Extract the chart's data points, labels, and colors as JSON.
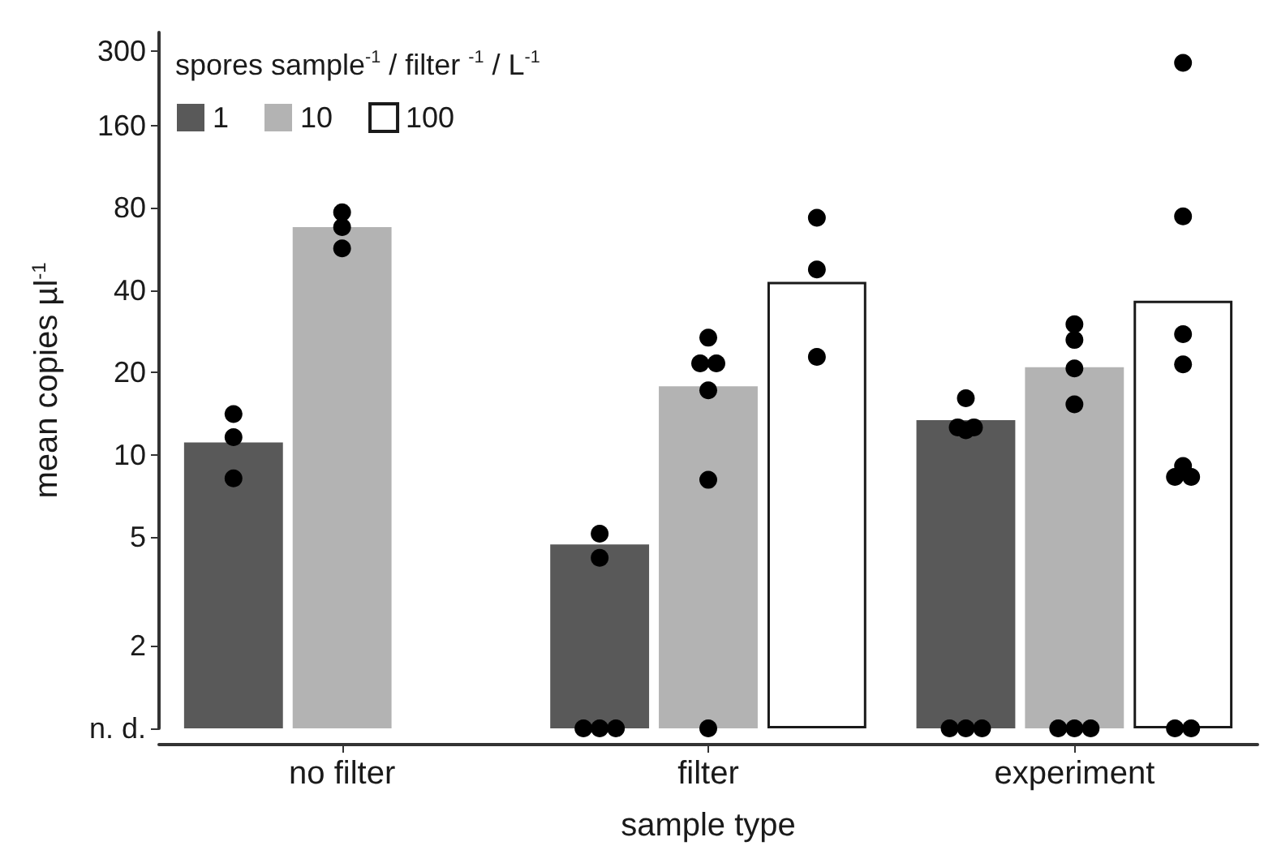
{
  "chart_data": {
    "type": "bar",
    "xlabel": "sample type",
    "ylabel": "mean copies µl$^{-1}$",
    "legend_title": "spores sample$^{-1}$ / filter $^{-1}$ / L$^{-1}$",
    "legend": "top left",
    "log": "y",
    "grid": false,
    "categories": [
      "no filter",
      "filter",
      "experiment"
    ],
    "ylim": [
      1,
      350
    ],
    "yticks": [
      {
        "value": 1,
        "label": "n. d."
      },
      2,
      5,
      10,
      20,
      40,
      80,
      160,
      300
    ],
    "series": [
      {
        "name": "1",
        "color": "#595959",
        "values": [
          11.1,
          4.7,
          13.4
        ]
      },
      {
        "name": "10",
        "color": "#b3b3b3",
        "values": [
          68,
          17.8,
          20.9
        ]
      },
      {
        "name": "100",
        "color": "#ffffff",
        "values": [
          null,
          42.9,
          36.6
        ]
      },
      {
        "type": "scatter",
        "color": "#000000",
        "marker": "circle",
        "x": [
          "no filter",
          "no filter",
          "no filter",
          "filter",
          "filter",
          "filter",
          "filter",
          "filter",
          "experiment",
          "experiment",
          "experiment",
          "experiment",
          "experiment",
          "experiment",
          "experiment"
        ],
        "values": [
          14.1,
          11.6,
          8.2,
          5.15,
          4.2,
          1,
          1,
          1,
          16.1,
          12.6,
          12.3,
          12.6,
          1,
          1,
          1
        ]
      },
      {
        "type": "scatter",
        "color": "#000000",
        "marker": "circle",
        "x": [
          "no filter",
          "no filter",
          "no filter",
          "filter",
          "filter",
          "filter",
          "filter",
          "filter",
          "filter",
          "experiment",
          "experiment",
          "experiment",
          "experiment",
          "experiment",
          "experiment",
          "experiment"
        ],
        "values": [
          77,
          68,
          56.8,
          26.8,
          21.6,
          21.6,
          17.2,
          8.1,
          1,
          30,
          26.3,
          20.7,
          15.3,
          1,
          1,
          1
        ]
      },
      {
        "type": "scatter",
        "color": "#000000",
        "marker": "circle",
        "x": [
          "filter",
          "filter",
          "filter",
          "experiment",
          "experiment",
          "experiment",
          "experiment",
          "experiment",
          "experiment",
          "experiment",
          "experiment",
          "experiment"
        ],
        "values": [
          73.5,
          47.6,
          22.8,
          271,
          74.4,
          27.6,
          21.4,
          9.1,
          8.3,
          8.3,
          1,
          1
        ]
      }
    ]
  }
}
